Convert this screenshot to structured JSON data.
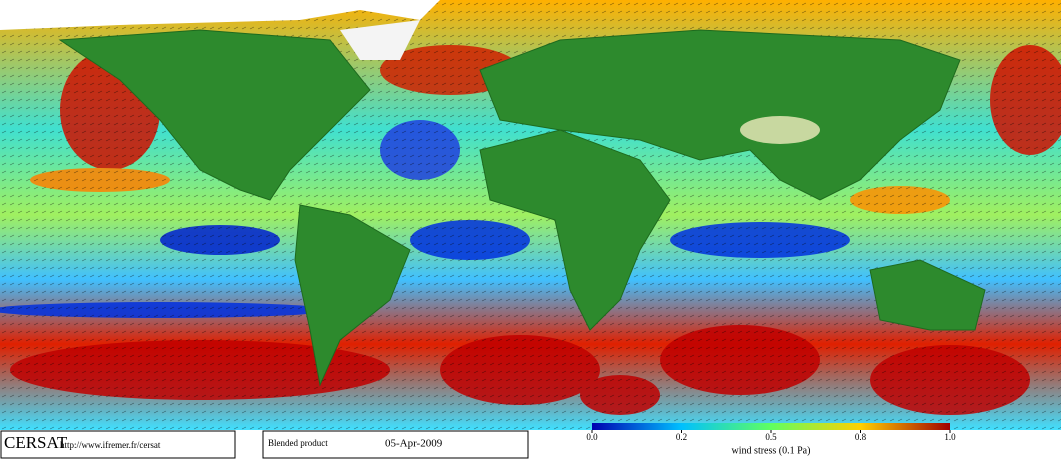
{
  "footer": {
    "logo": "CERSAT",
    "url": "http://www.ifremer.fr/cersat",
    "product": "Blended product",
    "date": "05-Apr-2009"
  },
  "colorbar": {
    "ticks": [
      {
        "value": 0,
        "label": "0.0"
      },
      0.2,
      0.5,
      0.8,
      {
        "value": 1,
        "label": "1.0"
      }
    ],
    "label": "wind stress (0.1 Pa)"
  }
}
